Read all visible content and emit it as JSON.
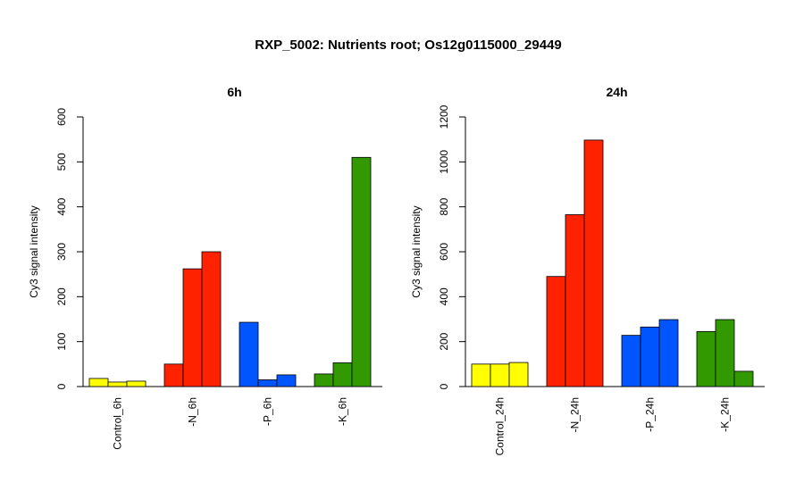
{
  "title": "RXP_5002: Nutrients root; Os12g0115000_29449",
  "chart_data": [
    {
      "type": "bar",
      "title": "6h",
      "ylabel": "Cy3 signal intensity",
      "ylim": [
        0,
        600
      ],
      "yticks": [
        0,
        100,
        200,
        300,
        400,
        500,
        600
      ],
      "categories": [
        "Control_6h",
        "-N_6h",
        "-P_6h",
        "-K_6h"
      ],
      "colors": [
        "#ffff00",
        "#ff2200",
        "#0055ff",
        "#339900"
      ],
      "values": [
        [
          18,
          10,
          12
        ],
        [
          50,
          262,
          300
        ],
        [
          143,
          15,
          26
        ],
        [
          28,
          53,
          510
        ]
      ]
    },
    {
      "type": "bar",
      "title": "24h",
      "ylabel": "Cy3 signal intensity",
      "ylim": [
        0,
        1200
      ],
      "yticks": [
        0,
        200,
        400,
        600,
        800,
        1000,
        1200
      ],
      "categories": [
        "Control_24h",
        "-N_24h",
        "-P_24h",
        "-K_24h"
      ],
      "colors": [
        "#ffff00",
        "#ff2200",
        "#0055ff",
        "#339900"
      ],
      "values": [
        [
          100,
          100,
          107
        ],
        [
          490,
          765,
          1097
        ],
        [
          228,
          265,
          298
        ],
        [
          245,
          298,
          68
        ]
      ]
    }
  ]
}
